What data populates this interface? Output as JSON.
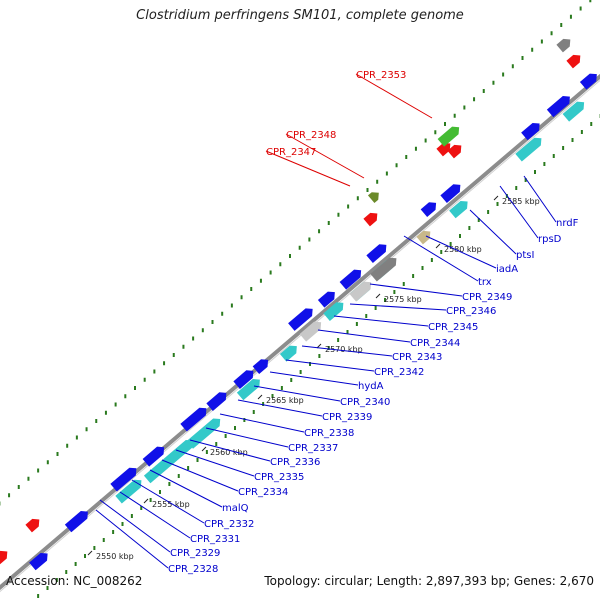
{
  "title": "Clostridium perfringens SM101, complete genome",
  "footer": {
    "accession": "Accession: NC_008262",
    "summary": "Topology: circular; Length: 2,897,393 bp; Genes: 2,670"
  },
  "colors": {
    "backbone": "#8c8c8c",
    "dots": "#2a7a1e",
    "blue_gene": "#1010e8",
    "cyan_gene": "#33c9c9",
    "gray_gene": "#808080",
    "light_gray_gene": "#c8c8c8",
    "red_gene": "#ee1111",
    "label_blue": "#0000cc",
    "label_red": "#dd0000"
  },
  "ticks": [
    "2550 kbp",
    "2555 kbp",
    "2560 kbp",
    "2565 kbp",
    "2570 kbp",
    "2575 kbp",
    "2580 kbp",
    "2585 kbp"
  ],
  "gene_labels": [
    {
      "text": "CPR_2328",
      "color": "blue"
    },
    {
      "text": "CPR_2329",
      "color": "blue"
    },
    {
      "text": "CPR_2331",
      "color": "blue"
    },
    {
      "text": "CPR_2332",
      "color": "blue"
    },
    {
      "text": "malQ",
      "color": "blue"
    },
    {
      "text": "CPR_2334",
      "color": "blue"
    },
    {
      "text": "CPR_2335",
      "color": "blue"
    },
    {
      "text": "CPR_2336",
      "color": "blue"
    },
    {
      "text": "CPR_2337",
      "color": "blue"
    },
    {
      "text": "CPR_2338",
      "color": "blue"
    },
    {
      "text": "CPR_2339",
      "color": "blue"
    },
    {
      "text": "CPR_2340",
      "color": "blue"
    },
    {
      "text": "hydA",
      "color": "blue"
    },
    {
      "text": "CPR_2342",
      "color": "blue"
    },
    {
      "text": "CPR_2343",
      "color": "blue"
    },
    {
      "text": "CPR_2344",
      "color": "blue"
    },
    {
      "text": "CPR_2345",
      "color": "blue"
    },
    {
      "text": "CPR_2346",
      "color": "blue"
    },
    {
      "text": "CPR_2349",
      "color": "blue"
    },
    {
      "text": "trx",
      "color": "blue"
    },
    {
      "text": "iadA",
      "color": "blue"
    },
    {
      "text": "ptsI",
      "color": "blue"
    },
    {
      "text": "rpsD",
      "color": "blue"
    },
    {
      "text": "nrdF",
      "color": "blue"
    },
    {
      "text": "CPR_2347",
      "color": "red"
    },
    {
      "text": "CPR_2348",
      "color": "red"
    },
    {
      "text": "CPR_2353",
      "color": "red"
    }
  ]
}
